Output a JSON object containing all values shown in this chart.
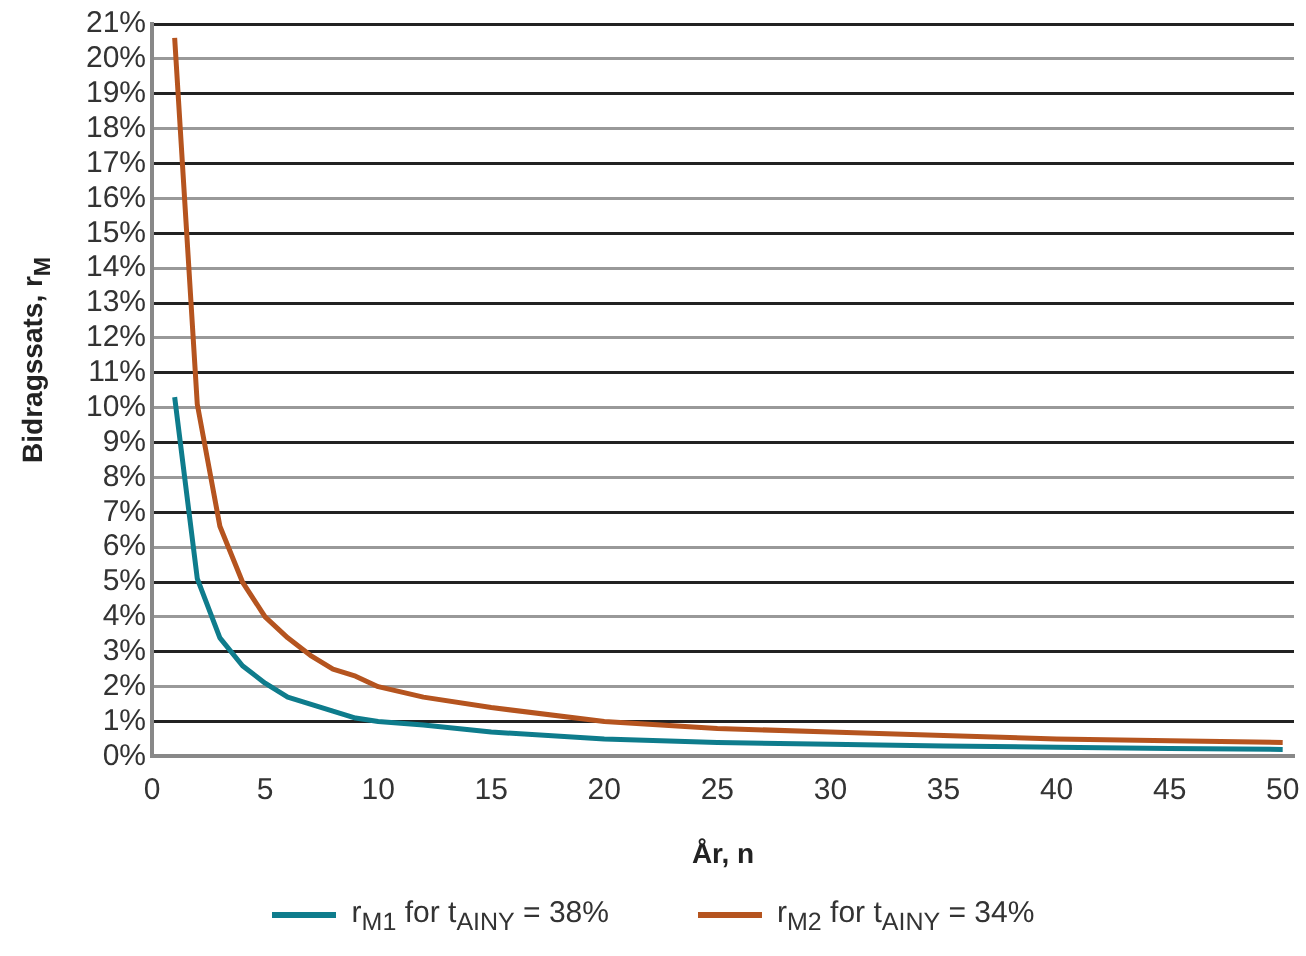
{
  "chart_data": {
    "type": "line",
    "xlabel": "År, n",
    "ylabel": "Bidragssats, r$_{M}$",
    "x": [
      1,
      2,
      3,
      4,
      5,
      6,
      7,
      8,
      9,
      10,
      12,
      15,
      20,
      25,
      30,
      35,
      40,
      45,
      50
    ],
    "series": [
      {
        "name": "r$_{M1}$ for t$_{AINY}$ = 38%",
        "color": "#0e7c8c",
        "values": [
          10.3,
          5.1,
          3.4,
          2.6,
          2.1,
          1.7,
          1.5,
          1.3,
          1.1,
          1.0,
          0.9,
          0.7,
          0.5,
          0.4,
          0.35,
          0.3,
          0.26,
          0.23,
          0.2
        ]
      },
      {
        "name": "r$_{M2}$ for t$_{AINY}$ = 34%",
        "color": "#b5541f",
        "values": [
          20.6,
          10.1,
          6.6,
          5.0,
          4.0,
          3.4,
          2.9,
          2.5,
          2.3,
          2.0,
          1.7,
          1.4,
          1.0,
          0.8,
          0.7,
          0.6,
          0.5,
          0.45,
          0.4
        ]
      }
    ],
    "xlim": [
      0,
      50.5
    ],
    "xticks": [
      0,
      5,
      10,
      15,
      20,
      25,
      30,
      35,
      40,
      45,
      50
    ],
    "ylim": [
      0,
      21
    ],
    "yticks": [
      {
        "value": 0,
        "label": "0%"
      },
      {
        "value": 1,
        "label": "1%"
      },
      {
        "value": 2,
        "label": "2%"
      },
      {
        "value": 3,
        "label": "3%"
      },
      {
        "value": 4,
        "label": "4%"
      },
      {
        "value": 5,
        "label": "5%"
      },
      {
        "value": 6,
        "label": "6%"
      },
      {
        "value": 7,
        "label": "7%"
      },
      {
        "value": 8,
        "label": "8%"
      },
      {
        "value": 9,
        "label": "9%"
      },
      {
        "value": 10,
        "label": "10%"
      },
      {
        "value": 11,
        "label": "11%"
      },
      {
        "value": 12,
        "label": "12%"
      },
      {
        "value": 13,
        "label": "13%"
      },
      {
        "value": 14,
        "label": "14%"
      },
      {
        "value": 15,
        "label": "15%"
      },
      {
        "value": 16,
        "label": "16%"
      },
      {
        "value": 17,
        "label": "17%"
      },
      {
        "value": 18,
        "label": "18%"
      },
      {
        "value": 19,
        "label": "19%"
      },
      {
        "value": 20,
        "label": "20%"
      },
      {
        "value": 21,
        "label": "21%"
      }
    ],
    "grid": "y",
    "legend": "bottom",
    "marker": "none",
    "line_style": "solid"
  }
}
